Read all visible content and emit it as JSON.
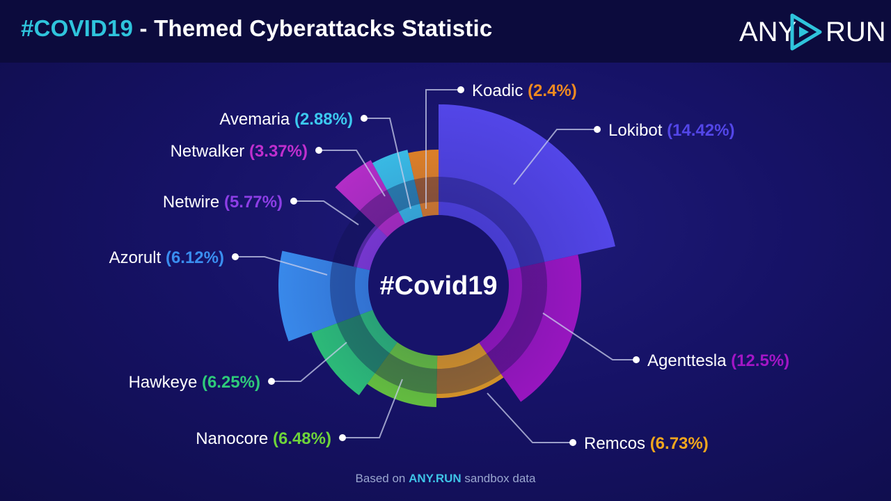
{
  "header": {
    "title_hash": "#COVID19",
    "title_rest": " - Themed Cyberattacks Statistic",
    "logo_left": "ANY",
    "logo_right": "RUN"
  },
  "footer": {
    "prefix": "Based on ",
    "brand": "ANY.RUN",
    "suffix": " sandbox data"
  },
  "chart_data": {
    "type": "pie",
    "center_label": "#Covid19",
    "slices": [
      {
        "name": "Lokibot",
        "label": "Lokibot",
        "value_text": "(14.42%)",
        "value": 14.42,
        "color": "#5346e8"
      },
      {
        "name": "Agenttesla",
        "label": "Agenttesla",
        "value_text": "(12.5%)",
        "value": 12.5,
        "color": "#a316c6"
      },
      {
        "name": "Remcos",
        "label": "Remcos",
        "value_text": "(6.73%)",
        "value": 6.73,
        "color": "#f0a61e"
      },
      {
        "name": "Nanocore",
        "label": "Nanocore",
        "value_text": "(6.48%)",
        "value": 6.48,
        "color": "#6ed43a"
      },
      {
        "name": "Hawkeye",
        "label": "Hawkeye",
        "value_text": "(6.25%)",
        "value": 6.25,
        "color": "#2ecb7a"
      },
      {
        "name": "Azorult",
        "label": "Azorult",
        "value_text": "(6.12%)",
        "value": 6.12,
        "color": "#3a8ef0"
      },
      {
        "name": "Netwire",
        "label": "Netwire",
        "value_text": "(5.77%)",
        "value": 5.77,
        "color": "#8d3ee6"
      },
      {
        "name": "Netwalker",
        "label": "Netwalker",
        "value_text": "(3.37%)",
        "value": 3.37,
        "color": "#c02fce"
      },
      {
        "name": "Avemaria",
        "label": "Avemaria",
        "value_text": "(2.88%)",
        "value": 2.88,
        "color": "#3cc9ef"
      },
      {
        "name": "Koadic",
        "label": "Koadic",
        "value_text": "(2.4%)",
        "value": 2.4,
        "color": "#f08a20"
      }
    ]
  }
}
